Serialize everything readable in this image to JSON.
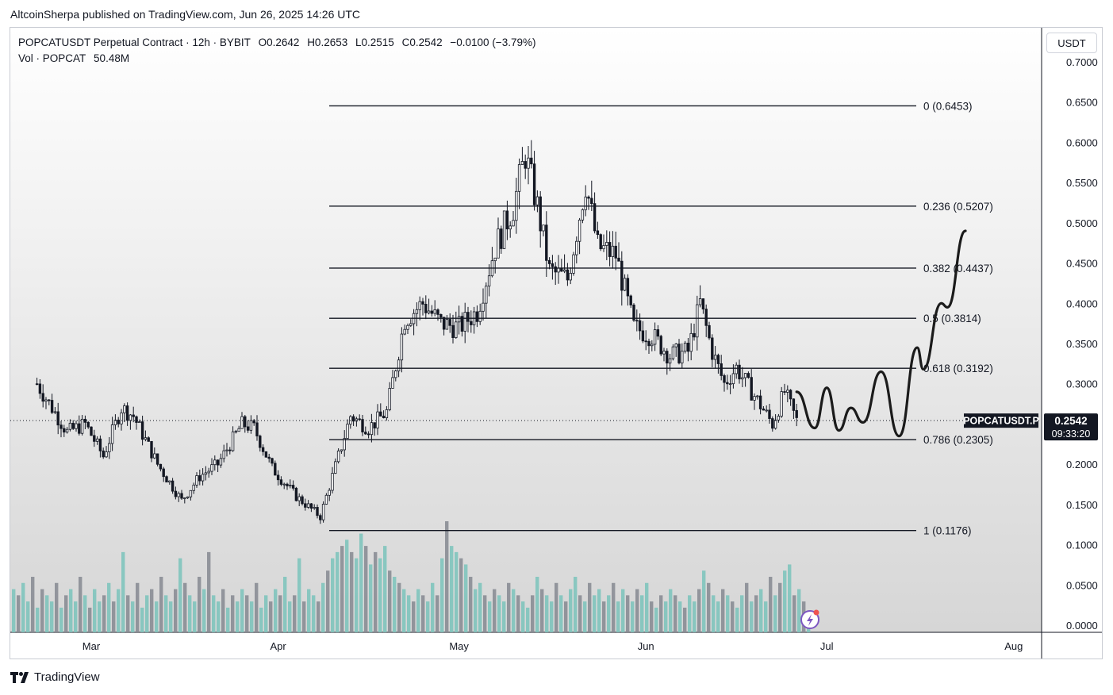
{
  "publisher_line": "AltcoinSherpa published on TradingView.com, Jun 26, 2025 14:26 UTC",
  "header": {
    "symbol": "POPCATUSDT Perpetual Contract · 12h · BYBIT",
    "open": "O0.2642",
    "high": "H0.2653",
    "low": "L0.2515",
    "close": "C0.2542",
    "change": "−0.0100 (−3.79%)",
    "volume_label": "Vol · POPCAT",
    "volume_value": "50.48M"
  },
  "currency_button": "USDT",
  "footer_logo": "TradingView",
  "logo_icon": "tradingview-logo-icon",
  "colors": {
    "up": "#26a69a",
    "down": "#ef5350",
    "candle": "#131722",
    "fib_line": "#131722",
    "background_top": "#ffffff",
    "background_bottom": "#d6d6d6",
    "price_tag": "#131722"
  },
  "chart_data": {
    "type": "candlestick",
    "timeframe": "12h",
    "symbol_tag": "POPCATUSDT.P",
    "last_price": "0.2542",
    "countdown": "09:33:20",
    "x_tick_labels": [
      "Mar",
      "Apr",
      "May",
      "Jun",
      "Jul",
      "Aug"
    ],
    "y_tick_labels": [
      "0.7000",
      "0.6500",
      "0.6000",
      "0.5500",
      "0.5000",
      "0.4500",
      "0.4000",
      "0.3500",
      "0.3000",
      "0.2500",
      "0.2000",
      "0.1500",
      "0.1000",
      "0.0500",
      "0.0000"
    ],
    "ylim": [
      0,
      0.71
    ],
    "grid": false,
    "fib_levels": [
      {
        "label": "0 (0.6453)",
        "value": 0.6453
      },
      {
        "label": "0.236 (0.5207)",
        "value": 0.5207
      },
      {
        "label": "0.382 (0.4437)",
        "value": 0.4437
      },
      {
        "label": "0.5 (0.3814)",
        "value": 0.3814
      },
      {
        "label": "0.618 (0.3192)",
        "value": 0.3192
      },
      {
        "label": "0.786 (0.2305)",
        "value": 0.2305
      },
      {
        "label": "1 (0.1176)",
        "value": 0.1176
      }
    ],
    "price_path": [
      {
        "date": "2025-02-20",
        "price": 0.3
      },
      {
        "date": "2025-02-25",
        "price": 0.24
      },
      {
        "date": "2025-02-28",
        "price": 0.25
      },
      {
        "date": "2025-03-03",
        "price": 0.21
      },
      {
        "date": "2025-03-06",
        "price": 0.27
      },
      {
        "date": "2025-03-08",
        "price": 0.26
      },
      {
        "date": "2025-03-12",
        "price": 0.2
      },
      {
        "date": "2025-03-16",
        "price": 0.155
      },
      {
        "date": "2025-03-19",
        "price": 0.185
      },
      {
        "date": "2025-03-22",
        "price": 0.2
      },
      {
        "date": "2025-03-26",
        "price": 0.25
      },
      {
        "date": "2025-03-28",
        "price": 0.245
      },
      {
        "date": "2025-03-31",
        "price": 0.195
      },
      {
        "date": "2025-04-04",
        "price": 0.16
      },
      {
        "date": "2025-04-08",
        "price": 0.135
      },
      {
        "date": "2025-04-10",
        "price": 0.185
      },
      {
        "date": "2025-04-13",
        "price": 0.26
      },
      {
        "date": "2025-04-16",
        "price": 0.245
      },
      {
        "date": "2025-04-19",
        "price": 0.265
      },
      {
        "date": "2025-04-22",
        "price": 0.38
      },
      {
        "date": "2025-04-25",
        "price": 0.4
      },
      {
        "date": "2025-04-28",
        "price": 0.375
      },
      {
        "date": "2025-05-01",
        "price": 0.37
      },
      {
        "date": "2025-05-04",
        "price": 0.39
      },
      {
        "date": "2025-05-07",
        "price": 0.47
      },
      {
        "date": "2025-05-10",
        "price": 0.52
      },
      {
        "date": "2025-05-12",
        "price": 0.585
      },
      {
        "date": "2025-05-14",
        "price": 0.52
      },
      {
        "date": "2025-05-16",
        "price": 0.44
      },
      {
        "date": "2025-05-19",
        "price": 0.43
      },
      {
        "date": "2025-05-22",
        "price": 0.55
      },
      {
        "date": "2025-05-24",
        "price": 0.47
      },
      {
        "date": "2025-05-27",
        "price": 0.46
      },
      {
        "date": "2025-05-30",
        "price": 0.37
      },
      {
        "date": "2025-06-02",
        "price": 0.36
      },
      {
        "date": "2025-06-05",
        "price": 0.335
      },
      {
        "date": "2025-06-08",
        "price": 0.34
      },
      {
        "date": "2025-06-10",
        "price": 0.4
      },
      {
        "date": "2025-06-12",
        "price": 0.34
      },
      {
        "date": "2025-06-14",
        "price": 0.3
      },
      {
        "date": "2025-06-16",
        "price": 0.32
      },
      {
        "date": "2025-06-19",
        "price": 0.285
      },
      {
        "date": "2025-06-22",
        "price": 0.25
      },
      {
        "date": "2025-06-24",
        "price": 0.29
      },
      {
        "date": "2025-06-26",
        "price": 0.2542
      }
    ],
    "drawn_projection": [
      {
        "date": "2025-06-26",
        "price": 0.29
      },
      {
        "date": "2025-06-29",
        "price": 0.245
      },
      {
        "date": "2025-07-01",
        "price": 0.295
      },
      {
        "date": "2025-07-03",
        "price": 0.242
      },
      {
        "date": "2025-07-05",
        "price": 0.27
      },
      {
        "date": "2025-07-07",
        "price": 0.252
      },
      {
        "date": "2025-07-10",
        "price": 0.315
      },
      {
        "date": "2025-07-13",
        "price": 0.235
      },
      {
        "date": "2025-07-16",
        "price": 0.345
      },
      {
        "date": "2025-07-17",
        "price": 0.318
      },
      {
        "date": "2025-07-20",
        "price": 0.4
      },
      {
        "date": "2025-07-21",
        "price": 0.395
      },
      {
        "date": "2025-07-24",
        "price": 0.49
      }
    ],
    "volume_bars": [
      0.07,
      0.06,
      0.08,
      0.05,
      0.09,
      0.04,
      0.07,
      0.06,
      0.05,
      0.08,
      0.04,
      0.06,
      0.07,
      0.05,
      0.09,
      0.06,
      0.04,
      0.07,
      0.05,
      0.06,
      0.08,
      0.05,
      0.07,
      0.13,
      0.06,
      0.05,
      0.08,
      0.04,
      0.06,
      0.07,
      0.05,
      0.09,
      0.06,
      0.05,
      0.07,
      0.12,
      0.08,
      0.06,
      0.05,
      0.09,
      0.07,
      0.13,
      0.06,
      0.05,
      0.07,
      0.04,
      0.06,
      0.05,
      0.07,
      0.06,
      0.05,
      0.08,
      0.04,
      0.06,
      0.05,
      0.07,
      0.06,
      0.09,
      0.05,
      0.06,
      0.12,
      0.05,
      0.07,
      0.06,
      0.05,
      0.08,
      0.1,
      0.12,
      0.13,
      0.14,
      0.15,
      0.13,
      0.12,
      0.16,
      0.14,
      0.11,
      0.13,
      0.12,
      0.14,
      0.1,
      0.09,
      0.08,
      0.07,
      0.06,
      0.05,
      0.07,
      0.06,
      0.05,
      0.08,
      0.06,
      0.12,
      0.18,
      0.14,
      0.13,
      0.12,
      0.11,
      0.09,
      0.07,
      0.08,
      0.06,
      0.05,
      0.07,
      0.06,
      0.05,
      0.08,
      0.07,
      0.06,
      0.05,
      0.04,
      0.06,
      0.09,
      0.07,
      0.06,
      0.05,
      0.08,
      0.06,
      0.05,
      0.07,
      0.09,
      0.06,
      0.05,
      0.08,
      0.06,
      0.07,
      0.05,
      0.06,
      0.08,
      0.05,
      0.07,
      0.06,
      0.05,
      0.07,
      0.06,
      0.08,
      0.05,
      0.04,
      0.06,
      0.05,
      0.07,
      0.06,
      0.05,
      0.04,
      0.06,
      0.05,
      0.07,
      0.1,
      0.08,
      0.06,
      0.05,
      0.07,
      0.06,
      0.05,
      0.04,
      0.06,
      0.08,
      0.05,
      0.06,
      0.07,
      0.05,
      0.09,
      0.06,
      0.08,
      0.1,
      0.11,
      0.06,
      0.07,
      0.05,
      0.03
    ],
    "volume_note": "Vol · POPCAT 50.48M"
  }
}
